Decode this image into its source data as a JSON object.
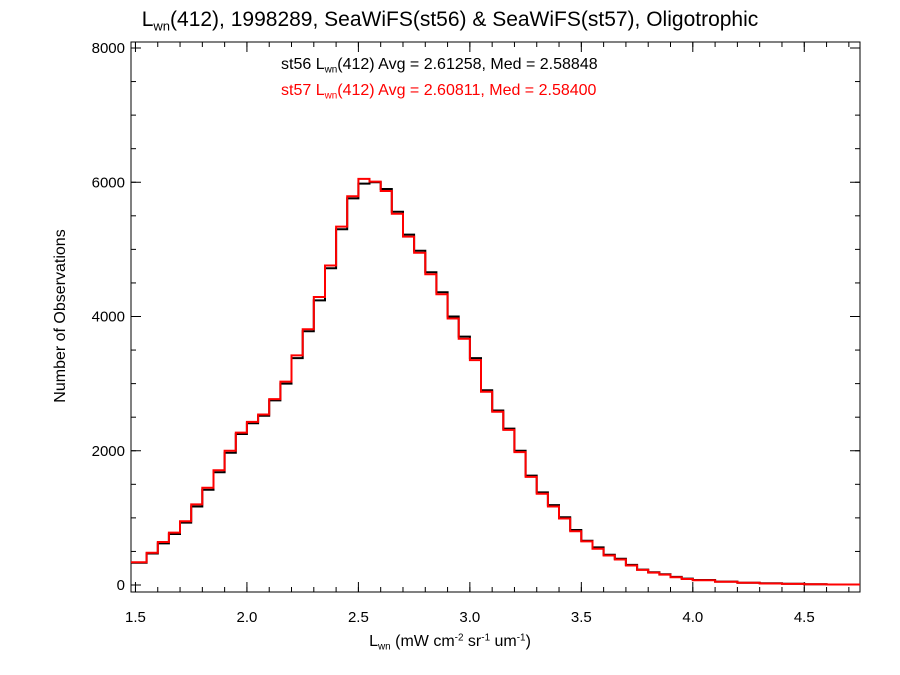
{
  "title": {
    "pre": "L",
    "sub": "wn",
    "post": "(412), 1998289, SeaWiFS(st56) & SeaWiFS(st57), Oligotrophic"
  },
  "xlabel": {
    "pre": "L",
    "sub": "wn",
    "mid1": " (mW cm",
    "sup1": "-2",
    "mid2": " sr",
    "sup2": "-1",
    "mid3": " um",
    "sup3": "-1",
    "post": ")"
  },
  "ylabel": "Number of Observations",
  "annotations": [
    {
      "pre": "st56 L",
      "sub": "wn",
      "post": "(412) Avg = 2.61258, Med = 2.58848",
      "color": "#000000"
    },
    {
      "pre": "st57 L",
      "sub": "wn",
      "post": "(412) Avg = 2.60811, Med = 2.58400",
      "color": "#ff0000"
    }
  ],
  "chart_data": {
    "type": "line",
    "step": true,
    "xlim": [
      1.48,
      4.75
    ],
    "ylim": [
      0,
      8000
    ],
    "x_ticks": [
      1.5,
      2.0,
      2.5,
      3.0,
      3.5,
      4.0,
      4.5
    ],
    "x_tick_labels": [
      "1.5",
      "2.0",
      "2.5",
      "3.0",
      "3.5",
      "4.0",
      "4.5"
    ],
    "y_ticks": [
      0,
      2000,
      4000,
      6000,
      8000
    ],
    "y_tick_labels": [
      "0",
      "2000",
      "4000",
      "6000",
      "8000"
    ],
    "grid": false,
    "series": [
      {
        "name": "st56",
        "color": "#000000",
        "x": [
          1.48,
          1.55,
          1.6,
          1.65,
          1.7,
          1.75,
          1.8,
          1.85,
          1.9,
          1.95,
          2.0,
          2.05,
          2.1,
          2.15,
          2.2,
          2.25,
          2.3,
          2.35,
          2.4,
          2.45,
          2.5,
          2.55,
          2.6,
          2.65,
          2.7,
          2.75,
          2.8,
          2.85,
          2.9,
          2.95,
          3.0,
          3.05,
          3.1,
          3.15,
          3.2,
          3.25,
          3.3,
          3.35,
          3.4,
          3.45,
          3.5,
          3.55,
          3.6,
          3.65,
          3.7,
          3.75,
          3.8,
          3.85,
          3.9,
          3.95,
          4.0,
          4.1,
          4.2,
          4.3,
          4.4,
          4.5,
          4.6,
          4.75
        ],
        "values": [
          330,
          470,
          620,
          760,
          930,
          1170,
          1420,
          1680,
          1970,
          2250,
          2410,
          2520,
          2750,
          3000,
          3380,
          3780,
          4240,
          4720,
          5300,
          5760,
          5980,
          6000,
          5900,
          5560,
          5220,
          4980,
          4660,
          4360,
          4000,
          3700,
          3380,
          2900,
          2600,
          2330,
          2000,
          1630,
          1380,
          1190,
          1010,
          820,
          660,
          560,
          450,
          390,
          300,
          230,
          190,
          160,
          120,
          95,
          75,
          50,
          35,
          25,
          18,
          12,
          8,
          6
        ]
      },
      {
        "name": "st57",
        "color": "#ff0000",
        "x": [
          1.48,
          1.55,
          1.6,
          1.65,
          1.7,
          1.75,
          1.8,
          1.85,
          1.9,
          1.95,
          2.0,
          2.05,
          2.1,
          2.15,
          2.2,
          2.25,
          2.3,
          2.35,
          2.4,
          2.45,
          2.5,
          2.55,
          2.6,
          2.65,
          2.7,
          2.75,
          2.8,
          2.85,
          2.9,
          2.95,
          3.0,
          3.05,
          3.1,
          3.15,
          3.2,
          3.25,
          3.3,
          3.35,
          3.4,
          3.45,
          3.5,
          3.55,
          3.6,
          3.65,
          3.7,
          3.75,
          3.8,
          3.85,
          3.9,
          3.95,
          4.0,
          4.1,
          4.2,
          4.3,
          4.4,
          4.5,
          4.6,
          4.75
        ],
        "values": [
          340,
          480,
          640,
          780,
          950,
          1200,
          1450,
          1710,
          2000,
          2270,
          2430,
          2540,
          2770,
          3030,
          3420,
          3810,
          4290,
          4760,
          5340,
          5790,
          6050,
          6010,
          5870,
          5530,
          5190,
          4950,
          4630,
          4330,
          3970,
          3670,
          3350,
          2880,
          2580,
          2310,
          1980,
          1610,
          1360,
          1170,
          990,
          800,
          650,
          540,
          440,
          380,
          290,
          225,
          185,
          155,
          115,
          90,
          70,
          48,
          33,
          23,
          16,
          11,
          7,
          5
        ]
      }
    ]
  }
}
